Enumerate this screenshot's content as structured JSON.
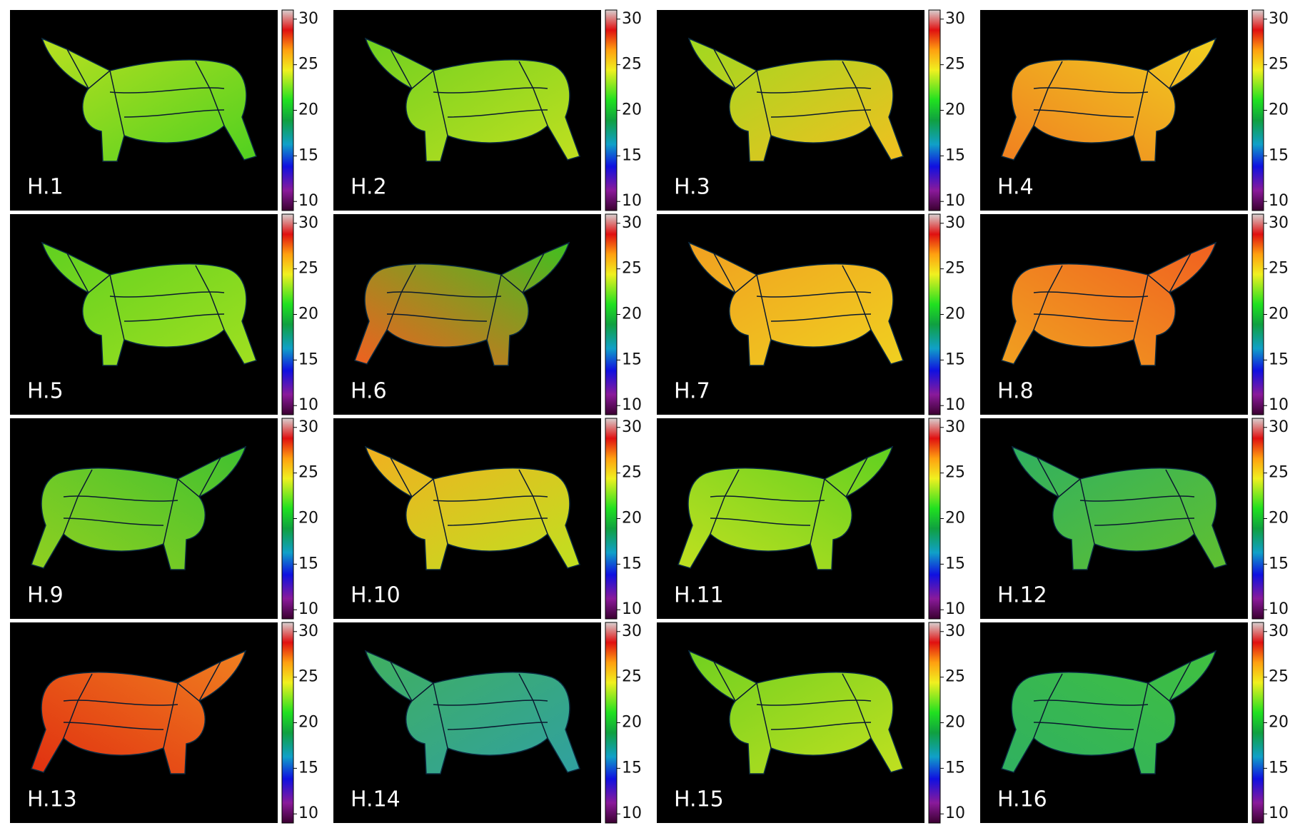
{
  "panels": [
    {
      "label": "H.1"
    },
    {
      "label": "H.2"
    },
    {
      "label": "H.3"
    },
    {
      "label": "H.4"
    },
    {
      "label": "H.5"
    },
    {
      "label": "H.6"
    },
    {
      "label": "H.7"
    },
    {
      "label": "H.8"
    },
    {
      "label": "H.9"
    },
    {
      "label": "H.10"
    },
    {
      "label": "H.11"
    },
    {
      "label": "H.12"
    },
    {
      "label": "H.13"
    },
    {
      "label": "H.14"
    },
    {
      "label": "H.15"
    },
    {
      "label": "H.16"
    }
  ],
  "colorbar": {
    "range": [
      9,
      31
    ],
    "ticks": [
      10,
      15,
      20,
      25,
      30
    ]
  }
}
